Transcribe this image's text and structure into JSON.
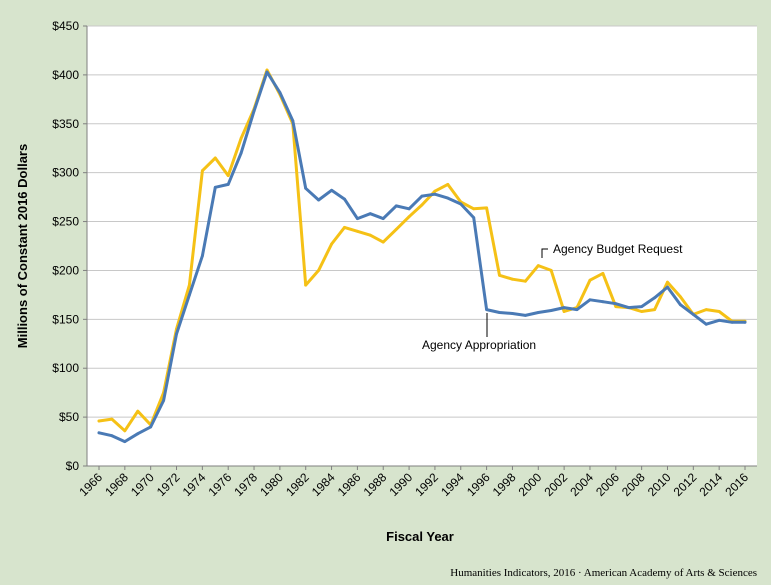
{
  "chart_data": {
    "type": "line",
    "title": "",
    "xlabel": "Fiscal Year",
    "ylabel": "Millions of Constant 2016 Dollars",
    "ylim": [
      0,
      450
    ],
    "y_ticks": [
      0,
      50,
      100,
      150,
      200,
      250,
      300,
      350,
      400,
      450
    ],
    "y_tick_labels": [
      "$0",
      "$50",
      "$100",
      "$150",
      "$200",
      "$250",
      "$300",
      "$350",
      "$400",
      "$450"
    ],
    "x_ticks": [
      1966,
      1968,
      1970,
      1972,
      1974,
      1976,
      1978,
      1980,
      1982,
      1984,
      1986,
      1988,
      1990,
      1992,
      1994,
      1996,
      1998,
      2000,
      2002,
      2004,
      2006,
      2008,
      2010,
      2012,
      2014,
      2016
    ],
    "x_tick_labels": [
      "1966",
      "1968",
      "1970",
      "1972",
      "1974",
      "1976",
      "1978",
      "1980",
      "1982",
      "1984",
      "1986",
      "1988",
      "1990",
      "1992",
      "1994",
      "1996",
      "1998",
      "2000",
      "2002",
      "2004",
      "2006",
      "2008",
      "2010",
      "2012",
      "2014",
      "2016"
    ],
    "x": [
      1966,
      1967,
      1968,
      1969,
      1970,
      1971,
      1972,
      1973,
      1974,
      1975,
      1976,
      1977,
      1978,
      1979,
      1980,
      1981,
      1982,
      1983,
      1984,
      1985,
      1986,
      1987,
      1988,
      1989,
      1990,
      1991,
      1992,
      1993,
      1994,
      1995,
      1996,
      1997,
      1998,
      1999,
      2000,
      2001,
      2002,
      2003,
      2004,
      2005,
      2006,
      2007,
      2008,
      2009,
      2010,
      2011,
      2012,
      2013,
      2014,
      2015,
      2016
    ],
    "series": [
      {
        "name": "Agency Budget Request",
        "color": "#f5c116",
        "values": [
          46,
          48,
          36,
          56,
          42,
          75,
          140,
          185,
          302,
          315,
          297,
          335,
          365,
          405,
          380,
          350,
          185,
          200,
          227,
          244,
          240,
          236,
          229,
          242,
          255,
          267,
          281,
          288,
          270,
          263,
          264,
          195,
          191,
          189,
          205,
          200,
          158,
          162,
          190,
          197,
          163,
          162,
          158,
          160,
          188,
          173,
          155,
          160,
          158,
          148,
          148
        ]
      },
      {
        "name": "Agency Appropriation",
        "color": "#4a7ab5",
        "values": [
          34,
          31,
          25,
          33,
          40,
          67,
          135,
          175,
          215,
          285,
          288,
          320,
          363,
          403,
          382,
          353,
          284,
          272,
          282,
          273,
          253,
          258,
          253,
          266,
          263,
          276,
          278,
          274,
          268,
          254,
          160,
          157,
          156,
          154,
          157,
          159,
          162,
          160,
          170,
          168,
          166,
          162,
          163,
          172,
          183,
          165,
          155,
          145,
          149,
          147,
          147
        ]
      }
    ],
    "annotations": {
      "request_label": "Agency Budget Request",
      "appropriation_label": "Agency Appropriation"
    },
    "grid": "horizontal",
    "legend": "inline labels"
  },
  "source_credit": "Humanities Indicators, 2016 · American Academy of Arts & Sciences"
}
